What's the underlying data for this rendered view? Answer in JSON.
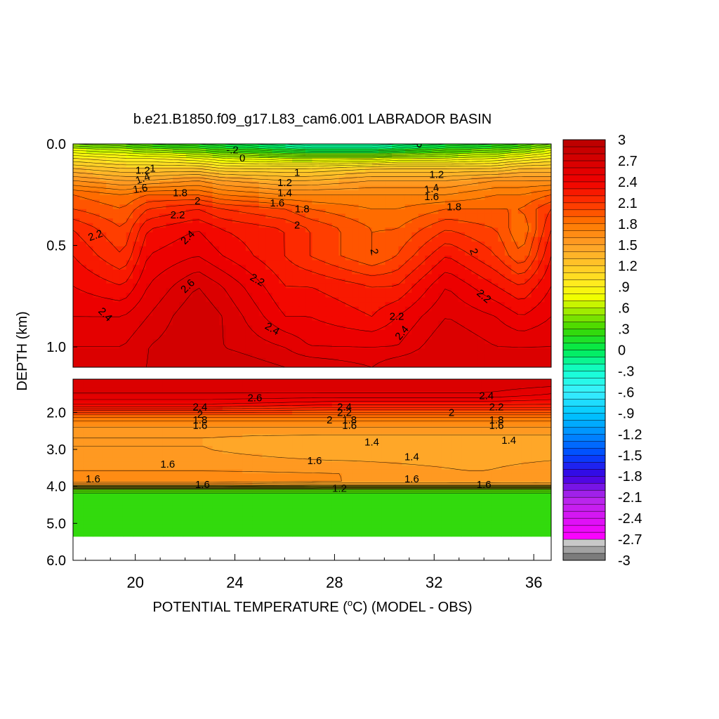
{
  "chart_data": {
    "type": "heatmap",
    "title": "b.e21.B1850.f09_g17.L83_cam6.001 LABRADOR BASIN",
    "xlabel_pre": "POTENTIAL TEMPERATURE (",
    "xlabel_sup": "o",
    "xlabel_post": "C) (MODEL - OBS)",
    "ylabel": "DEPTH (km)",
    "x_range": [
      17.5,
      36.7
    ],
    "x_ticks": [
      20,
      24,
      28,
      32,
      36
    ],
    "x_tick_labels": [
      "20",
      "24",
      "28",
      "32",
      "36"
    ],
    "upper_panel": {
      "depth_range": [
        0.0,
        1.1
      ],
      "y_ticks": [
        0.0,
        0.5,
        1.0
      ],
      "y_tick_labels": [
        "0.0",
        "0.5",
        "1.0"
      ]
    },
    "lower_panel": {
      "depth_range": [
        1.1,
        6.0
      ],
      "y_ticks": [
        2.0,
        3.0,
        4.0,
        5.0,
        6.0
      ],
      "y_tick_labels": [
        "2.0",
        "3.0",
        "4.0",
        "5.0",
        "6.0"
      ]
    },
    "colorbar": {
      "range": [
        -3,
        3
      ],
      "labels": [
        "3",
        "2.7",
        "2.4",
        "2.1",
        "1.8",
        "1.5",
        "1.2",
        ".9",
        ".6",
        ".3",
        "0",
        "-.3",
        "-.6",
        "-.9",
        "-1.2",
        "-1.5",
        "-1.8",
        "-2.1",
        "-2.4",
        "-2.7",
        "-3"
      ]
    },
    "upper_field": {
      "x": [
        17.5,
        19.5,
        20.5,
        22.5,
        23.5,
        26.0,
        27.0,
        29.5,
        30.5,
        32.5,
        34.5,
        35.5,
        36.7
      ],
      "depth": [
        0.0,
        0.03,
        0.07,
        0.12,
        0.18,
        0.25,
        0.32,
        0.42,
        0.55,
        0.7,
        0.85,
        1.0,
        1.1
      ],
      "values": [
        [
          0.4,
          0.3,
          0.2,
          0.1,
          0.0,
          -0.2,
          -0.3,
          -0.3,
          -0.2,
          0.0,
          0.1,
          0.2,
          0.4
        ],
        [
          0.7,
          0.6,
          0.5,
          0.4,
          0.3,
          0.1,
          0.0,
          0.0,
          0.1,
          0.3,
          0.4,
          0.5,
          0.7
        ],
        [
          1.0,
          0.9,
          0.9,
          0.8,
          0.7,
          0.6,
          0.6,
          0.6,
          0.7,
          0.7,
          0.8,
          0.9,
          1.0
        ],
        [
          1.3,
          1.2,
          1.2,
          1.2,
          1.1,
          1.1,
          1.1,
          1.2,
          1.2,
          1.2,
          1.2,
          1.3,
          1.3
        ],
        [
          1.6,
          1.5,
          1.5,
          1.6,
          1.5,
          1.4,
          1.4,
          1.5,
          1.5,
          1.5,
          1.6,
          1.6,
          1.6
        ],
        [
          1.9,
          1.8,
          1.9,
          1.9,
          1.8,
          1.7,
          1.7,
          1.7,
          1.7,
          1.7,
          1.8,
          1.8,
          1.9
        ],
        [
          2.0,
          1.9,
          2.1,
          2.2,
          2.1,
          2.0,
          1.9,
          1.8,
          1.8,
          1.9,
          1.9,
          1.9,
          2.1
        ],
        [
          2.2,
          2.0,
          2.3,
          2.4,
          2.3,
          2.2,
          2.1,
          1.9,
          1.9,
          2.1,
          2.0,
          1.8,
          2.2
        ],
        [
          2.3,
          2.1,
          2.4,
          2.5,
          2.4,
          2.2,
          2.1,
          1.9,
          2.0,
          2.3,
          2.1,
          1.9,
          2.3
        ],
        [
          2.4,
          2.3,
          2.5,
          2.7,
          2.6,
          2.3,
          2.3,
          2.2,
          2.2,
          2.5,
          2.3,
          2.2,
          2.4
        ],
        [
          2.5,
          2.5,
          2.6,
          2.8,
          2.7,
          2.4,
          2.4,
          2.3,
          2.4,
          2.6,
          2.5,
          2.4,
          2.5
        ],
        [
          2.6,
          2.6,
          2.7,
          2.8,
          2.7,
          2.6,
          2.5,
          2.5,
          2.5,
          2.7,
          2.6,
          2.6,
          2.6
        ],
        [
          2.7,
          2.7,
          2.7,
          2.8,
          2.8,
          2.7,
          2.7,
          2.6,
          2.7,
          2.7,
          2.7,
          2.7,
          2.7
        ]
      ]
    },
    "lower_field": {
      "x": [
        17.5,
        22.5,
        23.0,
        28.0,
        28.5,
        33.5,
        34.0,
        36.7
      ],
      "depth": [
        1.1,
        1.5,
        1.8,
        2.0,
        2.2,
        2.6,
        3.0,
        3.6,
        3.9,
        4.0,
        4.1,
        5.35
      ],
      "values": [
        [
          2.7,
          2.7,
          2.7,
          2.7,
          2.7,
          2.7,
          2.7,
          2.7
        ],
        [
          2.6,
          2.6,
          2.6,
          2.6,
          2.6,
          2.6,
          2.6,
          2.5
        ],
        [
          2.4,
          2.4,
          2.4,
          2.3,
          2.3,
          2.3,
          2.3,
          2.3
        ],
        [
          2.0,
          2.0,
          2.0,
          2.0,
          2.0,
          2.0,
          2.0,
          2.0
        ],
        [
          1.7,
          1.7,
          1.7,
          1.7,
          1.7,
          1.7,
          1.7,
          1.7
        ],
        [
          1.5,
          1.5,
          1.5,
          1.5,
          1.5,
          1.5,
          1.5,
          1.5
        ],
        [
          1.5,
          1.5,
          1.5,
          1.4,
          1.4,
          1.4,
          1.4,
          1.4
        ],
        [
          1.6,
          1.6,
          1.6,
          1.6,
          1.6,
          1.5,
          1.5,
          1.6
        ],
        [
          1.7,
          1.7,
          1.7,
          1.6,
          1.6,
          1.6,
          1.6,
          1.6
        ],
        [
          1.2,
          1.2,
          1.2,
          1.2,
          1.2,
          1.2,
          1.2,
          1.2
        ],
        [
          0.2,
          0.2,
          0.2,
          0.2,
          0.2,
          0.2,
          0.2,
          0.2
        ],
        [
          0.2,
          0.2,
          0.2,
          0.2,
          0.2,
          0.2,
          0.2,
          0.2
        ]
      ],
      "data_bottom_depth": 5.35
    },
    "contour_labels": [
      {
        "text": "-.2",
        "x": 23.9,
        "depth": 0.03,
        "rot": 0
      },
      {
        "text": "0",
        "x": 24.3,
        "depth": 0.07,
        "rot": 0
      },
      {
        "text": "0",
        "x": 31.4,
        "depth": 0.0,
        "rot": 0
      },
      {
        "text": "1.2",
        "x": 20.3,
        "depth": 0.13,
        "rot": 0
      },
      {
        "text": "1",
        "x": 20.7,
        "depth": 0.12,
        "rot": 0
      },
      {
        "text": "1.4",
        "x": 20.3,
        "depth": 0.17,
        "rot": -20
      },
      {
        "text": "1.6",
        "x": 20.2,
        "depth": 0.22,
        "rot": -10
      },
      {
        "text": "1.8",
        "x": 21.8,
        "depth": 0.24,
        "rot": 0
      },
      {
        "text": "2",
        "x": 22.5,
        "depth": 0.28,
        "rot": 0
      },
      {
        "text": "2.2",
        "x": 21.7,
        "depth": 0.35,
        "rot": 0
      },
      {
        "text": "2.2",
        "x": 18.4,
        "depth": 0.45,
        "rot": -20
      },
      {
        "text": "2.4",
        "x": 22.1,
        "depth": 0.46,
        "rot": -45
      },
      {
        "text": "2.6",
        "x": 22.1,
        "depth": 0.7,
        "rot": -45
      },
      {
        "text": "2.4",
        "x": 18.8,
        "depth": 0.84,
        "rot": 45
      },
      {
        "text": "1",
        "x": 26.5,
        "depth": 0.14,
        "rot": 0
      },
      {
        "text": "1.2",
        "x": 26.0,
        "depth": 0.19,
        "rot": 0
      },
      {
        "text": "1.4",
        "x": 26.0,
        "depth": 0.24,
        "rot": 0
      },
      {
        "text": "1.6",
        "x": 25.7,
        "depth": 0.29,
        "rot": 0
      },
      {
        "text": "1.8",
        "x": 26.7,
        "depth": 0.32,
        "rot": 0
      },
      {
        "text": "2",
        "x": 26.5,
        "depth": 0.4,
        "rot": 0
      },
      {
        "text": "2.2",
        "x": 24.9,
        "depth": 0.67,
        "rot": 30
      },
      {
        "text": "2.4",
        "x": 25.5,
        "depth": 0.91,
        "rot": 30
      },
      {
        "text": "2",
        "x": 29.6,
        "depth": 0.53,
        "rot": 80
      },
      {
        "text": "2.2",
        "x": 30.5,
        "depth": 0.85,
        "rot": 0
      },
      {
        "text": "2.4",
        "x": 30.7,
        "depth": 0.93,
        "rot": -50
      },
      {
        "text": "1.2",
        "x": 32.1,
        "depth": 0.15,
        "rot": 0
      },
      {
        "text": "1.4",
        "x": 31.9,
        "depth": 0.22,
        "rot": -10
      },
      {
        "text": "1.6",
        "x": 31.9,
        "depth": 0.26,
        "rot": 0
      },
      {
        "text": "1.8",
        "x": 32.8,
        "depth": 0.31,
        "rot": 0
      },
      {
        "text": "2",
        "x": 33.6,
        "depth": 0.53,
        "rot": 70
      },
      {
        "text": "2.2",
        "x": 34.0,
        "depth": 0.75,
        "rot": 40
      }
    ],
    "lower_contour_labels": [
      {
        "text": "2.6",
        "x": 24.8,
        "depth": 1.6
      },
      {
        "text": "2.4",
        "x": 22.6,
        "depth": 1.85
      },
      {
        "text": "2",
        "x": 22.6,
        "depth": 2.05
      },
      {
        "text": "1.8",
        "x": 22.6,
        "depth": 2.2
      },
      {
        "text": "1.6",
        "x": 22.6,
        "depth": 2.35
      },
      {
        "text": "2.4",
        "x": 28.4,
        "depth": 1.85
      },
      {
        "text": "2.2",
        "x": 28.4,
        "depth": 2.0
      },
      {
        "text": "2",
        "x": 27.8,
        "depth": 2.2
      },
      {
        "text": "1.8",
        "x": 28.6,
        "depth": 2.2
      },
      {
        "text": "1.6",
        "x": 28.6,
        "depth": 2.35
      },
      {
        "text": "2.4",
        "x": 34.1,
        "depth": 1.55
      },
      {
        "text": "2.2",
        "x": 34.5,
        "depth": 1.85
      },
      {
        "text": "2",
        "x": 32.7,
        "depth": 2.0
      },
      {
        "text": "1.8",
        "x": 34.5,
        "depth": 2.2
      },
      {
        "text": "1.6",
        "x": 34.5,
        "depth": 2.35
      },
      {
        "text": "1.4",
        "x": 29.5,
        "depth": 2.8
      },
      {
        "text": "1.4",
        "x": 35.0,
        "depth": 2.75
      },
      {
        "text": "1.4",
        "x": 31.1,
        "depth": 3.2
      },
      {
        "text": "1.6",
        "x": 21.3,
        "depth": 3.4
      },
      {
        "text": "1.6",
        "x": 27.2,
        "depth": 3.3
      },
      {
        "text": "1.6",
        "x": 18.3,
        "depth": 3.8
      },
      {
        "text": "1.6",
        "x": 31.1,
        "depth": 3.8
      },
      {
        "text": "1.6",
        "x": 22.7,
        "depth": 3.95
      },
      {
        "text": "1.2",
        "x": 28.2,
        "depth": 4.05
      },
      {
        "text": "1.6",
        "x": 34.0,
        "depth": 3.95
      }
    ]
  }
}
